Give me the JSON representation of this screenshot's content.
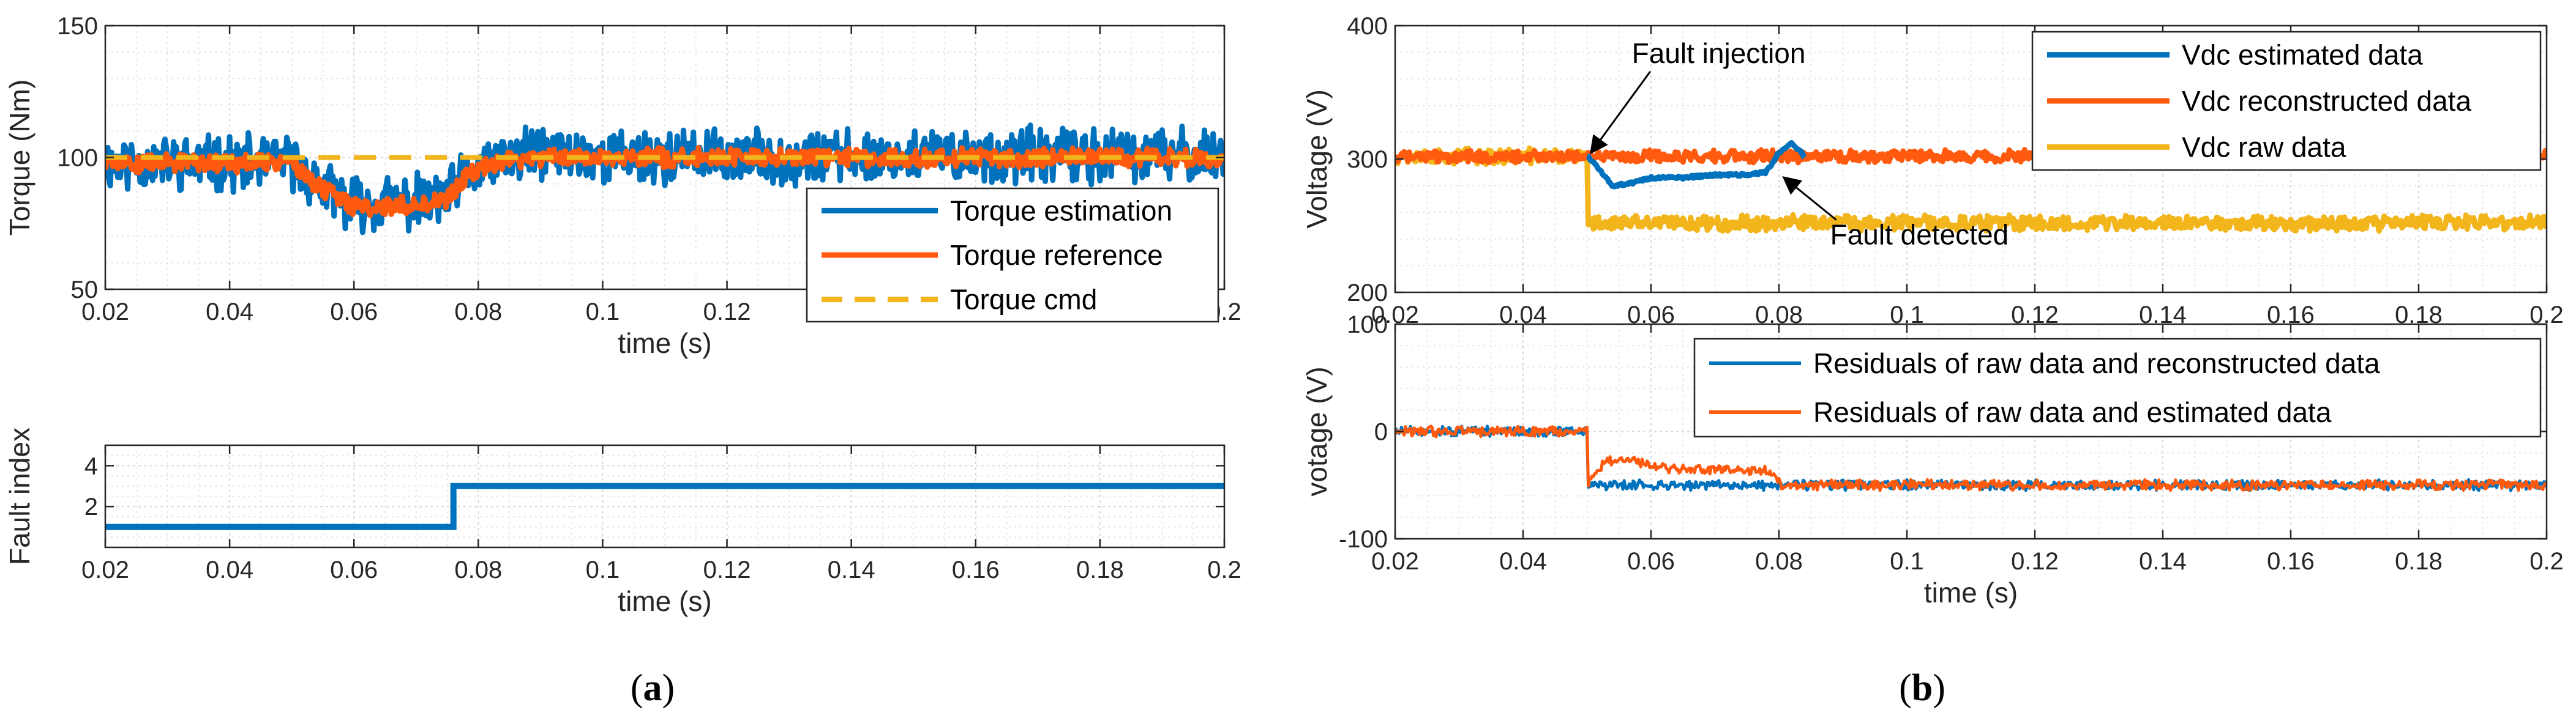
{
  "colors": {
    "blue": "#0072BD",
    "orange": "#FF5A0E",
    "yellow": "#F2B51B",
    "grid": "#d9d9d9",
    "axis": "#262626"
  },
  "panels": {
    "a": {
      "open": "(",
      "letter": "a",
      "close": ")"
    },
    "b": {
      "open": "(",
      "letter": "b",
      "close": ")"
    }
  },
  "chart_data": [
    {
      "id": "torque",
      "type": "line",
      "xlabel": "time (s)",
      "ylabel": "Torque (Nm)",
      "xlim": [
        0.02,
        0.2
      ],
      "ylim": [
        50,
        150
      ],
      "xticks": [
        0.02,
        0.04,
        0.06,
        0.08,
        0.1,
        0.12,
        0.14,
        0.16,
        0.18,
        0.2
      ],
      "xtick_labels": [
        "0.02",
        "0.04",
        "0.06",
        "0.08",
        "0.1",
        "0.12",
        "0.14",
        "0.16",
        "0.18",
        "0.2"
      ],
      "yticks": [
        50,
        100,
        150
      ],
      "ytick_labels": [
        "50",
        "100",
        "150"
      ],
      "grid": true,
      "legend_position": "lower-right",
      "series": [
        {
          "name": "Torque estimation",
          "color": "#0072BD",
          "style": "noisy",
          "noise": 9,
          "width": 9,
          "points": [
            [
              0.02,
              98
            ],
            [
              0.05,
              98
            ],
            [
              0.055,
              88
            ],
            [
              0.06,
              82
            ],
            [
              0.065,
              83
            ],
            [
              0.07,
              83
            ],
            [
              0.075,
              85
            ],
            [
              0.078,
              92
            ],
            [
              0.082,
              98
            ],
            [
              0.09,
              102
            ],
            [
              0.1,
              100
            ],
            [
              0.12,
              100
            ],
            [
              0.2,
              101
            ]
          ]
        },
        {
          "name": "Torque reference",
          "color": "#FF5A0E",
          "style": "noisy",
          "noise": 3,
          "width": 9,
          "points": [
            [
              0.02,
              98
            ],
            [
              0.05,
              98
            ],
            [
              0.055,
              88
            ],
            [
              0.06,
              81
            ],
            [
              0.07,
              82
            ],
            [
              0.075,
              84
            ],
            [
              0.078,
              92
            ],
            [
              0.082,
              98
            ],
            [
              0.09,
              100
            ],
            [
              0.2,
              100
            ]
          ]
        },
        {
          "name": "Torque cmd",
          "color": "#F2B51B",
          "style": "dashed",
          "width": 8,
          "points": [
            [
              0.02,
              100
            ],
            [
              0.2,
              100
            ]
          ]
        }
      ]
    },
    {
      "id": "fault-index",
      "type": "line",
      "xlabel": "time (s)",
      "ylabel": "Fault index",
      "xlim": [
        0.02,
        0.2
      ],
      "ylim": [
        0,
        5
      ],
      "xticks": [
        0.02,
        0.04,
        0.06,
        0.08,
        0.1,
        0.12,
        0.14,
        0.16,
        0.18,
        0.2
      ],
      "xtick_labels": [
        "0.02",
        "0.04",
        "0.06",
        "0.08",
        "0.1",
        "0.12",
        "0.14",
        "0.16",
        "0.18",
        "0.2"
      ],
      "yticks": [
        2,
        4
      ],
      "ytick_labels": [
        "2",
        "4"
      ],
      "grid": true,
      "series": [
        {
          "name": "Fault index",
          "color": "#0072BD",
          "style": "step",
          "width": 10,
          "points": [
            [
              0.02,
              1
            ],
            [
              0.076,
              1
            ],
            [
              0.076,
              3
            ],
            [
              0.2,
              3
            ]
          ]
        }
      ]
    },
    {
      "id": "voltage",
      "type": "line",
      "xlabel": "time (s)",
      "ylabel": "Voltage (V)",
      "xlim": [
        0.02,
        0.2
      ],
      "ylim": [
        200,
        400
      ],
      "xticks": [
        0.02,
        0.04,
        0.06,
        0.08,
        0.1,
        0.12,
        0.14,
        0.16,
        0.18,
        0.2
      ],
      "xtick_labels": [
        "0.02",
        "0.04",
        "0.06",
        "0.08",
        "0.1",
        "0.12",
        "0.14",
        "0.16",
        "0.18",
        "0.2"
      ],
      "yticks": [
        200,
        300,
        400
      ],
      "ytick_labels": [
        "200",
        "300",
        "400"
      ],
      "grid": true,
      "legend_position": "top-right",
      "series": [
        {
          "name": "Vdc raw data",
          "color": "#F2B51B",
          "style": "noisy",
          "noise": 5,
          "width": 9,
          "points": [
            [
              0.02,
              302
            ],
            [
              0.05,
              302
            ],
            [
              0.05,
              252
            ],
            [
              0.2,
              252
            ]
          ]
        },
        {
          "name": "Vdc reconstructed data",
          "color": "#FF5A0E",
          "style": "noisy",
          "noise": 4,
          "width": 9,
          "points": [
            [
              0.02,
              302
            ],
            [
              0.2,
              302
            ]
          ]
        },
        {
          "name": "Vdc estimated data",
          "color": "#0072BD",
          "style": "smooth",
          "width": 9,
          "points": [
            [
              0.05,
              302
            ],
            [
              0.052,
              292
            ],
            [
              0.054,
              280
            ],
            [
              0.057,
              282
            ],
            [
              0.06,
              286
            ],
            [
              0.065,
              286
            ],
            [
              0.07,
              288
            ],
            [
              0.075,
              288
            ],
            [
              0.078,
              290
            ],
            [
              0.08,
              305
            ],
            [
              0.082,
              312
            ],
            [
              0.084,
              302
            ]
          ]
        }
      ],
      "legend_order": [
        "Vdc estimated data",
        "Vdc reconstructed data",
        "Vdc raw data"
      ],
      "annotations": [
        {
          "text": "Fault injection",
          "target": [
            0.05,
            303
          ],
          "text_at": [
            0.057,
            372
          ]
        },
        {
          "text": "Fault detected",
          "target": [
            0.08,
            290
          ],
          "text_at": [
            0.088,
            236
          ]
        }
      ]
    },
    {
      "id": "residuals",
      "type": "line",
      "xlabel": "time (s)",
      "ylabel": "votage (V)",
      "xlim": [
        0.02,
        0.2
      ],
      "ylim": [
        -100,
        100
      ],
      "xticks": [
        0.02,
        0.04,
        0.06,
        0.08,
        0.1,
        0.12,
        0.14,
        0.16,
        0.18,
        0.2
      ],
      "xtick_labels": [
        "0.02",
        "0.04",
        "0.06",
        "0.08",
        "0.1",
        "0.12",
        "0.14",
        "0.16",
        "0.18",
        "0.2"
      ],
      "yticks": [
        -100,
        0,
        100
      ],
      "ytick_labels": [
        "-100",
        "0",
        "100"
      ],
      "grid": true,
      "legend_position": "top-right",
      "series": [
        {
          "name": "Residuals of raw data and reconstructed data",
          "color": "#0072BD",
          "style": "noisy",
          "noise": 4,
          "width": 5,
          "points": [
            [
              0.02,
              0
            ],
            [
              0.05,
              0
            ],
            [
              0.05,
              -50
            ],
            [
              0.2,
              -50
            ]
          ]
        },
        {
          "name": "Residuals of raw data and estimated data",
          "color": "#FF5A0E",
          "style": "noisy",
          "noise": 4,
          "width": 5,
          "points": [
            [
              0.02,
              0
            ],
            [
              0.05,
              0
            ],
            [
              0.05,
              -50
            ],
            [
              0.053,
              -28
            ],
            [
              0.056,
              -25
            ],
            [
              0.06,
              -33
            ],
            [
              0.07,
              -36
            ],
            [
              0.078,
              -36
            ],
            [
              0.081,
              -52
            ],
            [
              0.083,
              -50
            ],
            [
              0.2,
              -50
            ]
          ]
        }
      ],
      "legend_order": [
        "Residuals of raw data and reconstructed data",
        "Residuals of raw data and estimated data"
      ]
    }
  ]
}
